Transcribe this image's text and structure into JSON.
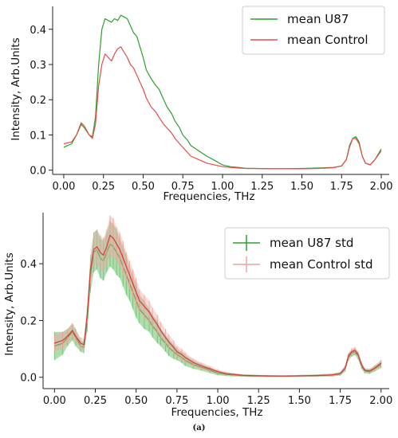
{
  "figure": {
    "caption": "(a)"
  },
  "chart_data": [
    {
      "type": "line",
      "xlabel": "Frequencies, THz",
      "ylabel": "Intensity, Arb.Units",
      "xlim": [
        -0.07,
        2.05
      ],
      "ylim": [
        -0.012,
        0.465
      ],
      "xticks": [
        0.0,
        0.25,
        0.5,
        0.75,
        1.0,
        1.25,
        1.5,
        1.75,
        2.0
      ],
      "xtick_labels": [
        "0.00",
        "0.25",
        "0.50",
        "0.75",
        "1.00",
        "1.25",
        "1.50",
        "1.75",
        "2.00"
      ],
      "yticks": [
        0.0,
        0.1,
        0.2,
        0.3,
        0.4
      ],
      "ytick_labels": [
        "0.0",
        "0.1",
        "0.2",
        "0.3",
        "0.4"
      ],
      "legend_position": "top-right",
      "series": [
        {
          "name": "mean U87",
          "color": "#2ca02c",
          "x": [
            0.0,
            0.05,
            0.08,
            0.11,
            0.13,
            0.16,
            0.18,
            0.2,
            0.22,
            0.24,
            0.26,
            0.28,
            0.3,
            0.32,
            0.34,
            0.36,
            0.38,
            0.4,
            0.42,
            0.44,
            0.46,
            0.48,
            0.5,
            0.52,
            0.55,
            0.58,
            0.6,
            0.63,
            0.65,
            0.68,
            0.7,
            0.73,
            0.75,
            0.78,
            0.8,
            0.85,
            0.9,
            0.95,
            1.0,
            1.05,
            1.1,
            1.15,
            1.2,
            1.3,
            1.4,
            1.5,
            1.6,
            1.7,
            1.75,
            1.78,
            1.8,
            1.82,
            1.84,
            1.86,
            1.88,
            1.9,
            1.93,
            1.96,
            2.0
          ],
          "y": [
            0.065,
            0.075,
            0.1,
            0.13,
            0.12,
            0.1,
            0.095,
            0.15,
            0.3,
            0.4,
            0.43,
            0.425,
            0.42,
            0.43,
            0.425,
            0.44,
            0.435,
            0.43,
            0.41,
            0.39,
            0.38,
            0.35,
            0.32,
            0.285,
            0.26,
            0.24,
            0.23,
            0.2,
            0.18,
            0.16,
            0.14,
            0.12,
            0.1,
            0.085,
            0.07,
            0.055,
            0.04,
            0.028,
            0.015,
            0.01,
            0.008,
            0.005,
            0.005,
            0.004,
            0.004,
            0.005,
            0.006,
            0.008,
            0.012,
            0.03,
            0.07,
            0.09,
            0.095,
            0.08,
            0.04,
            0.02,
            0.015,
            0.03,
            0.06
          ]
        },
        {
          "name": "mean Control",
          "color": "#e84a4a",
          "x": [
            0.0,
            0.05,
            0.08,
            0.11,
            0.13,
            0.16,
            0.18,
            0.2,
            0.22,
            0.24,
            0.26,
            0.28,
            0.3,
            0.32,
            0.34,
            0.36,
            0.38,
            0.4,
            0.42,
            0.44,
            0.46,
            0.48,
            0.5,
            0.52,
            0.55,
            0.58,
            0.6,
            0.63,
            0.65,
            0.68,
            0.7,
            0.73,
            0.75,
            0.78,
            0.8,
            0.85,
            0.9,
            0.95,
            1.0,
            1.05,
            1.1,
            1.15,
            1.2,
            1.3,
            1.4,
            1.5,
            1.6,
            1.7,
            1.75,
            1.78,
            1.8,
            1.82,
            1.84,
            1.86,
            1.88,
            1.9,
            1.93,
            1.96,
            2.0
          ],
          "y": [
            0.075,
            0.08,
            0.1,
            0.135,
            0.125,
            0.1,
            0.09,
            0.13,
            0.24,
            0.3,
            0.33,
            0.32,
            0.31,
            0.33,
            0.345,
            0.35,
            0.335,
            0.32,
            0.3,
            0.29,
            0.27,
            0.25,
            0.23,
            0.205,
            0.18,
            0.165,
            0.15,
            0.13,
            0.12,
            0.105,
            0.09,
            0.075,
            0.065,
            0.05,
            0.04,
            0.03,
            0.02,
            0.015,
            0.01,
            0.008,
            0.006,
            0.005,
            0.005,
            0.004,
            0.004,
            0.004,
            0.005,
            0.007,
            0.012,
            0.03,
            0.065,
            0.09,
            0.09,
            0.075,
            0.04,
            0.02,
            0.015,
            0.03,
            0.055
          ]
        }
      ]
    },
    {
      "type": "line",
      "xlabel": "Frequencies, THz",
      "ylabel": "Intensity, Arb.Units",
      "xlim": [
        -0.07,
        2.05
      ],
      "ylim": [
        -0.04,
        0.58
      ],
      "xticks": [
        0.0,
        0.25,
        0.5,
        0.75,
        1.0,
        1.25,
        1.5,
        1.75,
        2.0
      ],
      "xtick_labels": [
        "0.00",
        "0.25",
        "0.50",
        "0.75",
        "1.00",
        "1.25",
        "1.50",
        "1.75",
        "2.00"
      ],
      "yticks": [
        0.0,
        0.2,
        0.4
      ],
      "ytick_labels": [
        "0.0",
        "0.2",
        "0.4"
      ],
      "legend_position": "top-right",
      "error_bars": true,
      "series": [
        {
          "name": "mean U87 std",
          "color": "#2ca02c",
          "band_color": "#6cc26c",
          "x": [
            0.0,
            0.05,
            0.08,
            0.11,
            0.13,
            0.16,
            0.18,
            0.2,
            0.22,
            0.24,
            0.26,
            0.28,
            0.3,
            0.32,
            0.34,
            0.36,
            0.38,
            0.4,
            0.42,
            0.44,
            0.46,
            0.48,
            0.5,
            0.52,
            0.55,
            0.58,
            0.6,
            0.63,
            0.65,
            0.68,
            0.7,
            0.73,
            0.75,
            0.78,
            0.8,
            0.85,
            0.9,
            0.95,
            1.0,
            1.05,
            1.1,
            1.15,
            1.2,
            1.3,
            1.4,
            1.5,
            1.6,
            1.7,
            1.75,
            1.78,
            1.8,
            1.82,
            1.84,
            1.86,
            1.88,
            1.9,
            1.93,
            1.96,
            2.0
          ],
          "y": [
            0.11,
            0.12,
            0.14,
            0.16,
            0.14,
            0.11,
            0.105,
            0.2,
            0.36,
            0.44,
            0.45,
            0.42,
            0.41,
            0.44,
            0.47,
            0.46,
            0.44,
            0.42,
            0.39,
            0.36,
            0.33,
            0.3,
            0.27,
            0.24,
            0.22,
            0.2,
            0.18,
            0.16,
            0.14,
            0.12,
            0.105,
            0.09,
            0.08,
            0.07,
            0.06,
            0.045,
            0.035,
            0.025,
            0.015,
            0.01,
            0.008,
            0.006,
            0.005,
            0.004,
            0.004,
            0.005,
            0.006,
            0.008,
            0.012,
            0.03,
            0.07,
            0.085,
            0.09,
            0.075,
            0.04,
            0.022,
            0.02,
            0.03,
            0.045
          ],
          "err": [
            0.05,
            0.04,
            0.03,
            0.03,
            0.03,
            0.02,
            0.02,
            0.04,
            0.06,
            0.07,
            0.07,
            0.07,
            0.07,
            0.07,
            0.08,
            0.08,
            0.08,
            0.07,
            0.07,
            0.07,
            0.06,
            0.06,
            0.06,
            0.05,
            0.05,
            0.04,
            0.04,
            0.04,
            0.03,
            0.03,
            0.03,
            0.025,
            0.02,
            0.02,
            0.02,
            0.015,
            0.012,
            0.01,
            0.008,
            0.006,
            0.005,
            0.004,
            0.004,
            0.003,
            0.003,
            0.003,
            0.004,
            0.005,
            0.006,
            0.01,
            0.012,
            0.012,
            0.012,
            0.012,
            0.01,
            0.008,
            0.008,
            0.01,
            0.012
          ]
        },
        {
          "name": "mean Control std",
          "color": "#d63a3a",
          "band_color": "#f2a0a0",
          "x": [
            0.0,
            0.05,
            0.08,
            0.11,
            0.13,
            0.16,
            0.18,
            0.2,
            0.22,
            0.24,
            0.26,
            0.28,
            0.3,
            0.32,
            0.34,
            0.36,
            0.38,
            0.4,
            0.42,
            0.44,
            0.46,
            0.48,
            0.5,
            0.52,
            0.55,
            0.58,
            0.6,
            0.63,
            0.65,
            0.68,
            0.7,
            0.73,
            0.75,
            0.78,
            0.8,
            0.85,
            0.9,
            0.95,
            1.0,
            1.05,
            1.1,
            1.15,
            1.2,
            1.3,
            1.4,
            1.5,
            1.6,
            1.7,
            1.75,
            1.78,
            1.8,
            1.82,
            1.84,
            1.86,
            1.88,
            1.9,
            1.93,
            1.96,
            2.0
          ],
          "y": [
            0.12,
            0.13,
            0.145,
            0.165,
            0.145,
            0.12,
            0.115,
            0.22,
            0.38,
            0.45,
            0.46,
            0.44,
            0.43,
            0.46,
            0.5,
            0.49,
            0.47,
            0.45,
            0.42,
            0.39,
            0.36,
            0.33,
            0.3,
            0.27,
            0.25,
            0.23,
            0.21,
            0.185,
            0.165,
            0.14,
            0.125,
            0.105,
            0.09,
            0.08,
            0.07,
            0.052,
            0.04,
            0.03,
            0.02,
            0.013,
            0.01,
            0.007,
            0.006,
            0.005,
            0.004,
            0.005,
            0.006,
            0.008,
            0.013,
            0.032,
            0.075,
            0.09,
            0.095,
            0.08,
            0.045,
            0.025,
            0.022,
            0.032,
            0.05
          ],
          "err": [
            0.03,
            0.03,
            0.025,
            0.025,
            0.02,
            0.02,
            0.02,
            0.03,
            0.05,
            0.06,
            0.06,
            0.06,
            0.06,
            0.06,
            0.07,
            0.07,
            0.06,
            0.06,
            0.06,
            0.05,
            0.05,
            0.05,
            0.05,
            0.04,
            0.04,
            0.04,
            0.035,
            0.035,
            0.03,
            0.03,
            0.025,
            0.025,
            0.02,
            0.02,
            0.018,
            0.014,
            0.012,
            0.01,
            0.008,
            0.006,
            0.005,
            0.004,
            0.004,
            0.003,
            0.003,
            0.003,
            0.004,
            0.005,
            0.006,
            0.01,
            0.012,
            0.012,
            0.012,
            0.012,
            0.01,
            0.008,
            0.008,
            0.01,
            0.012
          ]
        }
      ]
    }
  ]
}
